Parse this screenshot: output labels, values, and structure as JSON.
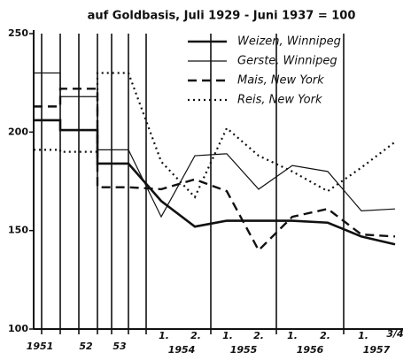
{
  "chart_data": {
    "type": "line",
    "subtitle": "auf Goldbasis, Juli 1929 - Juni 1937 = 100",
    "categories": [
      null,
      null,
      null,
      null,
      null,
      null,
      null,
      null,
      null,
      null,
      null,
      null,
      null,
      null
    ],
    "xlabels": [
      "1951",
      "52",
      "53",
      "1.",
      "2.",
      "1954",
      "1.",
      "2.",
      "1955",
      "1.",
      "2.",
      "1956",
      "1.",
      "3/4",
      "1957"
    ],
    "series": [
      {
        "name": "Weizen, Winnipeg",
        "color": "#111",
        "style": "thick",
        "values": [
          206,
          206,
          201,
          201,
          184,
          184,
          165,
          152,
          155,
          155,
          155,
          154,
          147,
          143
        ]
      },
      {
        "name": "Gerste, Winnipeg",
        "color": "#111",
        "style": "thin",
        "values": [
          230,
          230,
          218,
          218,
          191,
          191,
          157,
          188,
          189,
          171,
          183,
          180,
          160,
          161
        ]
      },
      {
        "name": "Mais, New York",
        "color": "#111",
        "style": "dashed",
        "values": [
          213,
          213,
          222,
          222,
          172,
          172,
          171,
          176,
          170,
          140,
          157,
          161,
          148,
          147
        ]
      },
      {
        "name": "Reis, New York",
        "color": "#111",
        "style": "dotted",
        "values": [
          191,
          191,
          190,
          190,
          230,
          230,
          185,
          167,
          202,
          188,
          180,
          170,
          182,
          195
        ]
      }
    ],
    "ylim": [
      100,
      250
    ],
    "yticks": [
      100,
      150,
      200,
      250
    ]
  }
}
